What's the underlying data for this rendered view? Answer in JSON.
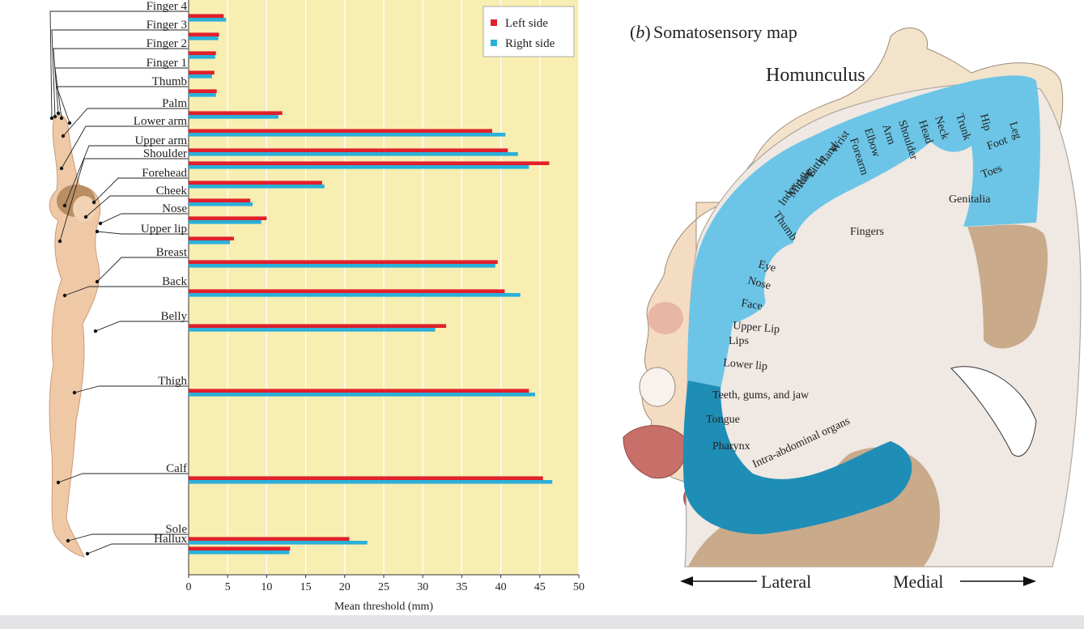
{
  "chart_data": {
    "type": "bar",
    "orientation": "horizontal",
    "xlabel": "Mean threshold (mm)",
    "xlim": [
      0,
      50
    ],
    "x_ticks": [
      0,
      5,
      10,
      15,
      20,
      25,
      30,
      35,
      40,
      45,
      50
    ],
    "grid": true,
    "legend_position": "top-right",
    "categories": [
      "Finger 4",
      "Finger 3",
      "Finger 2",
      "Finger 1",
      "Thumb",
      "Palm",
      "Lower arm",
      "Upper arm",
      "Shoulder",
      "Forehead",
      "Cheek",
      "Nose",
      "Upper lip",
      "Breast",
      "Back",
      "Belly",
      "Thigh",
      "Calf",
      "Sole",
      "Hallux"
    ],
    "series": [
      {
        "name": "Left side",
        "color": "#e0202b",
        "values": [
          4.5,
          3.9,
          3.5,
          3.3,
          3.6,
          12.0,
          38.9,
          40.9,
          46.2,
          17.1,
          7.9,
          10.0,
          5.8,
          39.6,
          40.5,
          33.0,
          43.6,
          45.4,
          20.6,
          13.0
        ]
      },
      {
        "name": "Right side",
        "color": "#29b0d9",
        "values": [
          4.8,
          3.8,
          3.4,
          3.0,
          3.5,
          11.5,
          40.6,
          42.2,
          43.6,
          17.4,
          8.2,
          9.3,
          5.3,
          39.3,
          42.5,
          31.6,
          44.4,
          46.6,
          22.9,
          12.9
        ]
      }
    ]
  },
  "right_panel": {
    "panel_label_letter": "b",
    "panel_title": "Somatosensory map",
    "homunculus_title": "Homunculus",
    "body_part_labels": [
      "Hip",
      "Leg",
      "Trunk",
      "Neck",
      "Head",
      "Shoulder",
      "Arm",
      "Elbow",
      "Forearm",
      "Wrist",
      "Hand",
      "Little",
      "Ring",
      "Middle",
      "Index",
      "Thumb",
      "Foot",
      "Toes",
      "Genitalia",
      "Fingers",
      "Eye",
      "Nose",
      "Face",
      "Upper Lip",
      "Lips",
      "Lower lip",
      "Teeth, gums, and jaw",
      "Tongue",
      "Pharynx",
      "Intra-abdominal organs"
    ],
    "axis_left": "Lateral",
    "axis_right": "Medial"
  },
  "colors": {
    "plot_background": "#f9eeb2",
    "cortex_light": "#6cc5e6",
    "cortex_dark": "#1f8eb6",
    "skin": "#f3dcc2",
    "brain": "#efe8e3",
    "brain_dark": "#c9aa8b"
  }
}
